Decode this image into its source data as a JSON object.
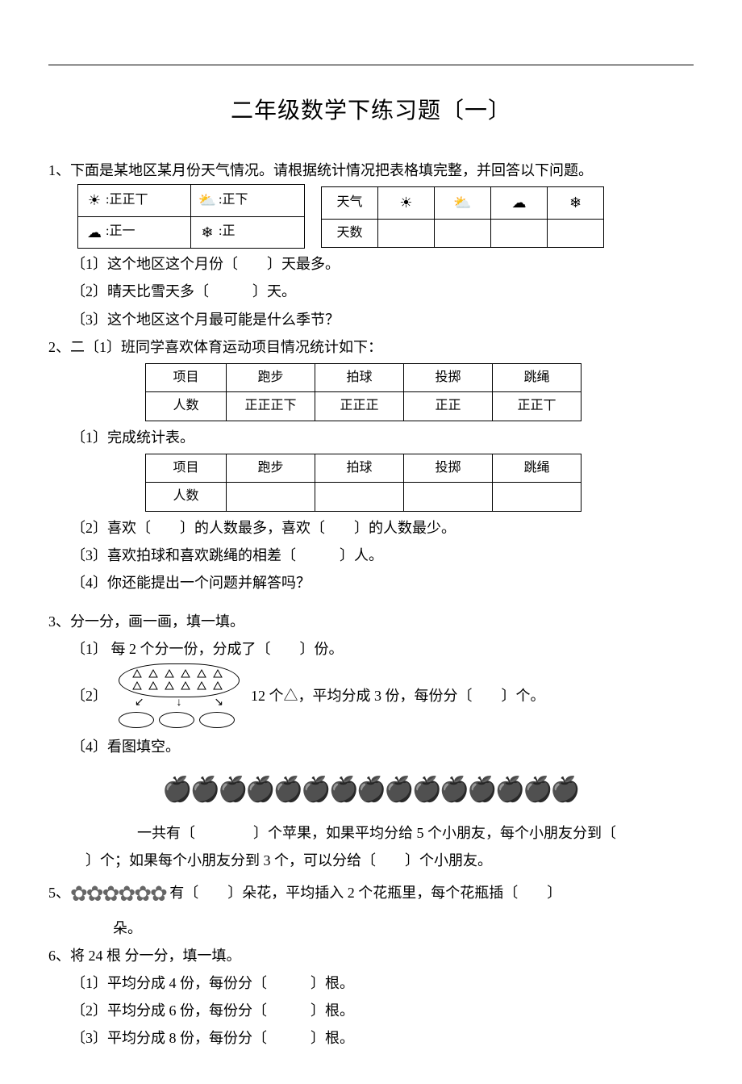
{
  "title": "二年级数学下练习题〔一〕",
  "q1": {
    "stem": "1、下面是某地区某月份天气情况。请根据统计情况把表格填完整，并回答以下问题。",
    "tally": {
      "sunny": "正正丅",
      "partly": "正下",
      "cloudy": "正一",
      "snow": "正"
    },
    "weather_table": {
      "row1_label": "天气",
      "row2_label": "天数"
    },
    "s1": "〔1〕这个地区这个月份〔　　〕天最多。",
    "s2": "〔2〕晴天比雪天多〔　　　〕天。",
    "s3": "〔3〕这个地区这个月最可能是什么季节？"
  },
  "q2": {
    "stem": "2、二〔1〕班同学喜欢体育运动项目情况统计如下：",
    "headers": [
      "项目",
      "跑步",
      "拍球",
      "投掷",
      "跳绳"
    ],
    "tally_row_label": "人数",
    "tally": [
      "正正正下",
      "正正正",
      "正正",
      "正正丅"
    ],
    "s1": "〔1〕完成统计表。",
    "blank_row_label": "人数",
    "s2": "〔2〕喜欢〔　　〕的人数最多，喜欢〔　　〕的人数最少。",
    "s3": "〔3〕喜欢拍球和喜欢跳绳的相差〔　　　〕人。",
    "s4": "〔4〕你还能提出一个问题并解答吗？"
  },
  "q3": {
    "stem": "3、分一分，画一画，填一填。",
    "s1": "〔1〕 每 2 个分一份，分成了〔　　〕份。",
    "s2_prefix": "〔2〕",
    "s2_text": "12 个△，平均分成 3 份，每份分〔　　〕个。",
    "s4": "〔4〕看图填空。",
    "apple_count": 15,
    "apple_line1": "一共有〔　　　　〕个苹果，如果平均分给 5 个小朋友，每个小朋友分到〔",
    "apple_line2": "　〕个；如果每个小朋友分到 3 个，可以分给〔　　〕个小朋友。"
  },
  "q5": {
    "prefix": "5、",
    "flower_count": 6,
    "text1": "有〔　　〕朵花，平均插入 2 个花瓶里，每个花瓶插〔　　〕",
    "text2": "朵。"
  },
  "q6": {
    "stem": "6、将 24 根 分一分，填一填。",
    "s1": "〔1〕平均分成 4 份，每份分〔　　　〕根。",
    "s2": "〔2〕平均分成 6 份，每份分〔　　　〕根。",
    "s3": "〔3〕平均分成 8 份，每份分〔　　　〕根。"
  },
  "colors": {
    "text": "#000000",
    "background": "#ffffff",
    "icon_gray": "#666666"
  }
}
